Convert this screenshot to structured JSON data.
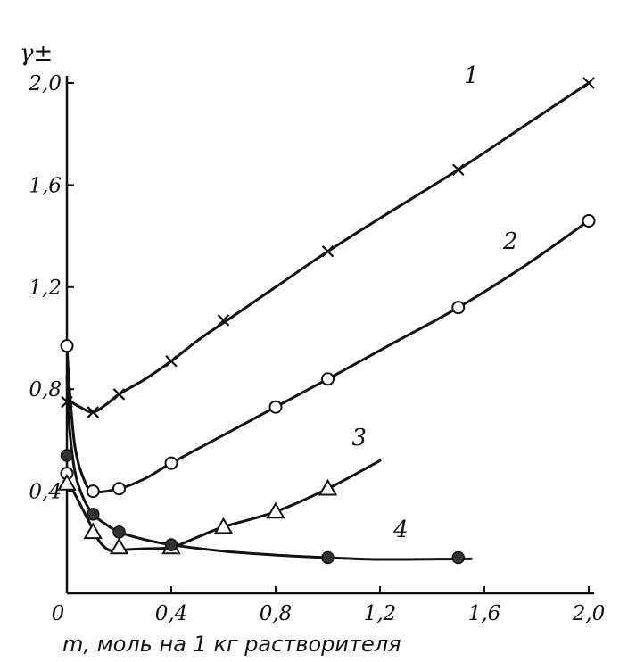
{
  "chart_data": {
    "type": "line",
    "title": "",
    "xlabel": "m, моль на 1 кг растворителя",
    "ylabel": "γ±",
    "xlim": [
      0,
      2.0
    ],
    "ylim": [
      0,
      2.0
    ],
    "xticks": [
      {
        "value": 0,
        "label": "0"
      },
      {
        "value": 0.4,
        "label": "0,4"
      },
      {
        "value": 0.8,
        "label": "0,8"
      },
      {
        "value": 1.2,
        "label": "1,2"
      },
      {
        "value": 1.6,
        "label": "1,6"
      },
      {
        "value": 2.0,
        "label": "2,0"
      }
    ],
    "yticks": [
      {
        "value": 0.4,
        "label": "0,4"
      },
      {
        "value": 0.8,
        "label": "0,8"
      },
      {
        "value": 1.2,
        "label": "1,2"
      },
      {
        "value": 1.6,
        "label": "1,6"
      },
      {
        "value": 2.0,
        "label": "2,0"
      }
    ],
    "grid": false,
    "series": [
      {
        "name": "1",
        "marker": "cross",
        "points": [
          [
            0.0,
            0.75
          ],
          [
            0.1,
            0.71
          ],
          [
            0.2,
            0.78
          ],
          [
            0.4,
            0.91
          ],
          [
            0.6,
            1.07
          ],
          [
            1.0,
            1.34
          ],
          [
            1.5,
            1.66
          ],
          [
            2.0,
            2.0
          ]
        ],
        "curve": [
          [
            0.0,
            0.76
          ],
          [
            0.05,
            0.73
          ],
          [
            0.1,
            0.71
          ],
          [
            0.15,
            0.74
          ],
          [
            0.2,
            0.78
          ],
          [
            0.3,
            0.84
          ],
          [
            0.4,
            0.91
          ],
          [
            0.5,
            0.99
          ],
          [
            0.6,
            1.06
          ],
          [
            0.8,
            1.2
          ],
          [
            1.0,
            1.34
          ],
          [
            1.2,
            1.47
          ],
          [
            1.5,
            1.66
          ],
          [
            1.75,
            1.83
          ],
          [
            2.0,
            2.0
          ]
        ],
        "label": "1",
        "label_at": [
          1.55,
          2.0
        ]
      },
      {
        "name": "2",
        "marker": "circle",
        "points": [
          [
            0.0,
            0.97
          ],
          [
            0.0,
            0.47
          ],
          [
            0.1,
            0.4
          ],
          [
            0.2,
            0.41
          ],
          [
            0.4,
            0.51
          ],
          [
            0.8,
            0.73
          ],
          [
            1.0,
            0.84
          ],
          [
            1.5,
            1.12
          ],
          [
            2.0,
            1.46
          ]
        ],
        "curve": [
          [
            0.0,
            0.97
          ],
          [
            0.01,
            0.8
          ],
          [
            0.03,
            0.58
          ],
          [
            0.06,
            0.46
          ],
          [
            0.1,
            0.4
          ],
          [
            0.2,
            0.41
          ],
          [
            0.3,
            0.45
          ],
          [
            0.4,
            0.51
          ],
          [
            0.6,
            0.62
          ],
          [
            0.8,
            0.73
          ],
          [
            1.0,
            0.84
          ],
          [
            1.25,
            0.98
          ],
          [
            1.5,
            1.12
          ],
          [
            1.75,
            1.28
          ],
          [
            2.0,
            1.46
          ]
        ],
        "label": "2",
        "label_at": [
          1.7,
          1.35
        ]
      },
      {
        "name": "3",
        "marker": "triangle",
        "points": [
          [
            0.0,
            0.43
          ],
          [
            0.1,
            0.24
          ],
          [
            0.2,
            0.18
          ],
          [
            0.4,
            0.18
          ],
          [
            0.6,
            0.26
          ],
          [
            0.8,
            0.32
          ],
          [
            1.0,
            0.41
          ]
        ],
        "curve": [
          [
            0.0,
            0.45
          ],
          [
            0.04,
            0.37
          ],
          [
            0.08,
            0.29
          ],
          [
            0.12,
            0.21
          ],
          [
            0.16,
            0.17
          ],
          [
            0.2,
            0.17
          ],
          [
            0.3,
            0.175
          ],
          [
            0.4,
            0.18
          ],
          [
            0.5,
            0.22
          ],
          [
            0.6,
            0.26
          ],
          [
            0.8,
            0.32
          ],
          [
            1.0,
            0.41
          ],
          [
            1.2,
            0.52
          ]
        ],
        "label": "3",
        "label_at": [
          1.12,
          0.58
        ]
      },
      {
        "name": "4",
        "marker": "filled-circle",
        "points": [
          [
            0.0,
            0.54
          ],
          [
            0.1,
            0.31
          ],
          [
            0.2,
            0.24
          ],
          [
            0.4,
            0.19
          ],
          [
            1.0,
            0.14
          ],
          [
            1.5,
            0.14
          ]
        ],
        "curve": [
          [
            0.0,
            0.85
          ],
          [
            0.01,
            0.65
          ],
          [
            0.03,
            0.48
          ],
          [
            0.06,
            0.38
          ],
          [
            0.1,
            0.31
          ],
          [
            0.15,
            0.27
          ],
          [
            0.2,
            0.24
          ],
          [
            0.3,
            0.21
          ],
          [
            0.4,
            0.19
          ],
          [
            0.6,
            0.165
          ],
          [
            0.8,
            0.15
          ],
          [
            1.0,
            0.14
          ],
          [
            1.2,
            0.133
          ],
          [
            1.5,
            0.135
          ],
          [
            1.55,
            0.135
          ]
        ],
        "label": "4",
        "label_at": [
          1.28,
          0.22
        ]
      }
    ]
  }
}
